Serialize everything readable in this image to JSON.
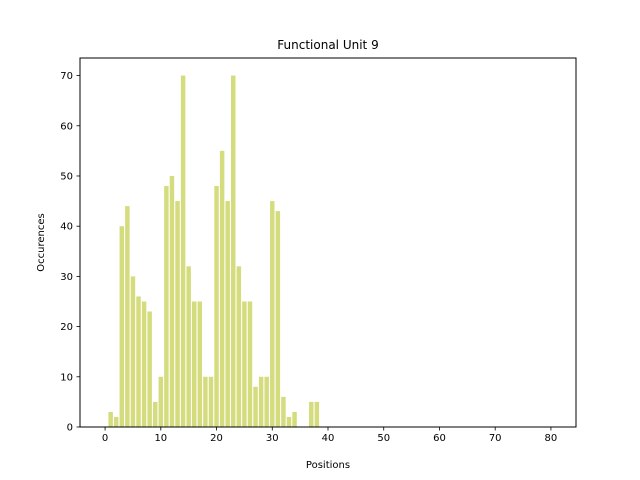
{
  "chart_data": {
    "type": "bar",
    "title": "Functional Unit 9",
    "xlabel": "Positions",
    "ylabel": "Occurences",
    "xlim": [
      -4.5,
      84.5
    ],
    "ylim": [
      0,
      73.5
    ],
    "xticks": [
      0,
      10,
      20,
      30,
      40,
      50,
      60,
      70,
      80
    ],
    "yticks": [
      0,
      10,
      20,
      30,
      40,
      50,
      60,
      70
    ],
    "grid": false,
    "bar_color": "#d4dc7e",
    "x": [
      1,
      2,
      3,
      4,
      5,
      6,
      7,
      8,
      9,
      10,
      11,
      12,
      13,
      14,
      15,
      16,
      17,
      18,
      19,
      20,
      21,
      22,
      23,
      24,
      25,
      26,
      27,
      28,
      29,
      30,
      31,
      32,
      33,
      34,
      37,
      38
    ],
    "values": [
      3,
      2,
      40,
      44,
      30,
      26,
      25,
      23,
      5,
      10,
      48,
      50,
      45,
      70,
      32,
      25,
      25,
      10,
      10,
      48,
      55,
      45,
      70,
      32,
      25,
      25,
      8,
      10,
      10,
      45,
      43,
      6,
      2,
      3,
      5,
      5
    ]
  }
}
